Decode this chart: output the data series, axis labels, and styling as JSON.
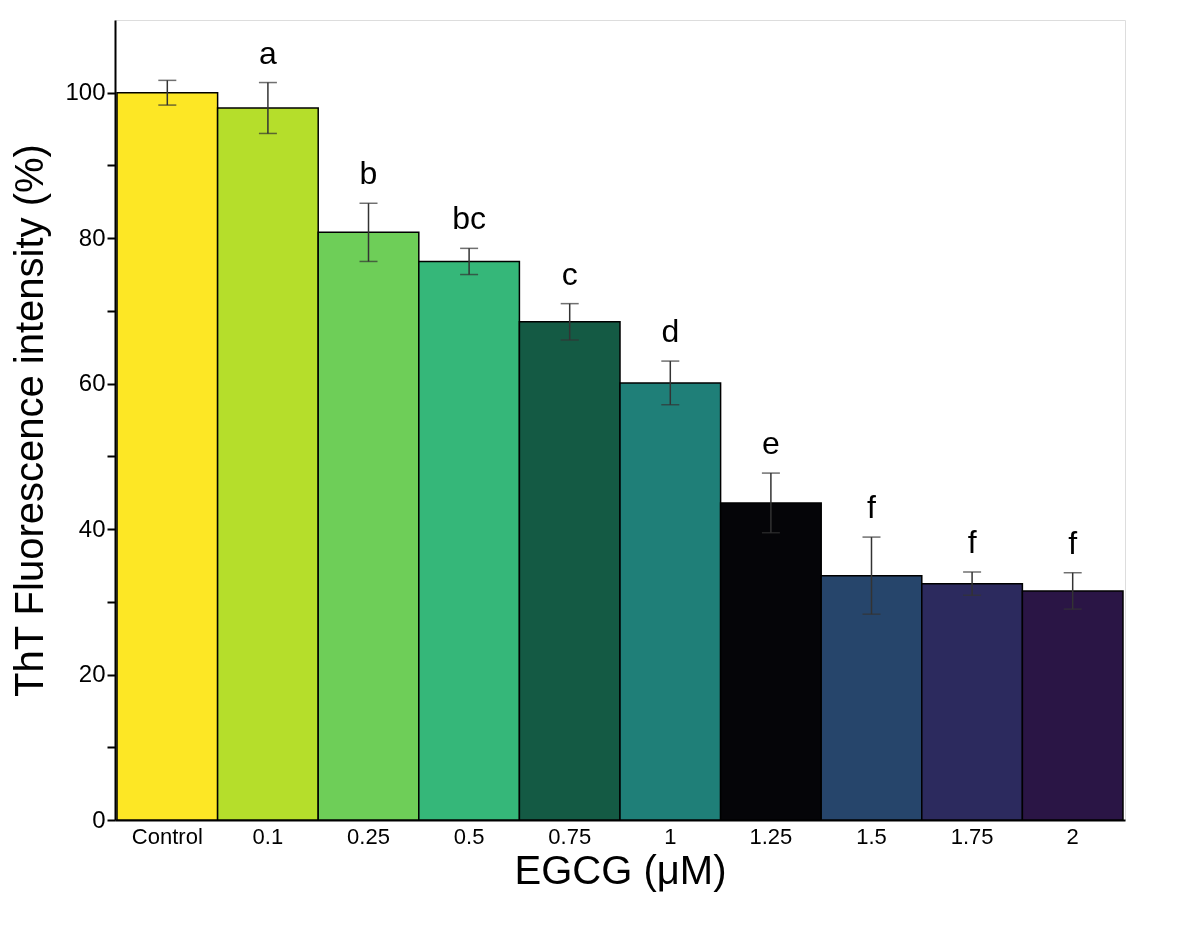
{
  "chart_data": {
    "type": "bar",
    "xlabel": "EGCG (μM)",
    "ylabel": "ThT Fluorescence intensity (%)",
    "categories": [
      "Control",
      "0.1",
      "0.25",
      "0.5",
      "0.75",
      "1",
      "1.25",
      "1.5",
      "1.75",
      "2"
    ],
    "values": [
      100,
      97.9,
      80.8,
      76.8,
      68.5,
      60.1,
      43.6,
      33.6,
      32.5,
      31.5
    ],
    "errors": [
      1.7,
      3.5,
      4,
      1.8,
      2.5,
      3,
      4.1,
      5.3,
      1.6,
      2.5
    ],
    "colors": [
      "#fde725",
      "#b5de2b",
      "#6ece58",
      "#35b779",
      "#145a44",
      "#1f7f78",
      "#050508",
      "#26456b",
      "#2c2a5e",
      "#2a1545"
    ],
    "ylim": [
      0,
      110
    ],
    "yticks": [
      0,
      {
        "value": 10,
        "label": null
      },
      20,
      {
        "value": 30,
        "label": null
      },
      40,
      {
        "value": 50,
        "label": null
      },
      60,
      {
        "value": 70,
        "label": null
      },
      80,
      {
        "value": 90,
        "label": null
      },
      100
    ],
    "grid": false,
    "annotations": [
      "a",
      "b",
      "bc",
      "c",
      "d",
      "e",
      "f",
      "f",
      "f"
    ]
  }
}
